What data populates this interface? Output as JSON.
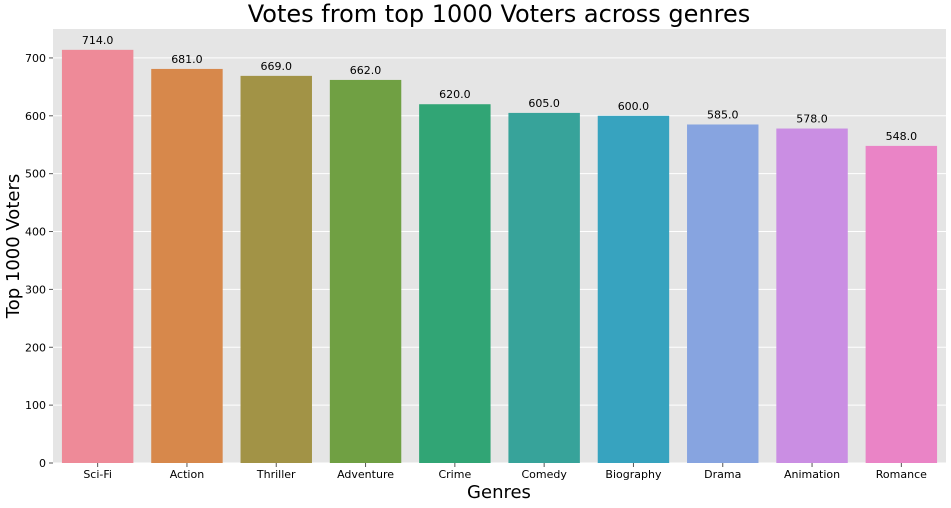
{
  "chart_data": {
    "type": "bar",
    "title": "Votes from top 1000 Voters across genres",
    "xlabel": "Genres",
    "ylabel": "Top 1000 Voters",
    "categories": [
      "Sci-Fi",
      "Action",
      "Thriller",
      "Adventure",
      "Crime",
      "Comedy",
      "Biography",
      "Drama",
      "Animation",
      "Romance"
    ],
    "values": [
      714.0,
      681.0,
      669.0,
      662.0,
      620.0,
      605.0,
      600.0,
      585.0,
      578.0,
      548.0
    ],
    "data_labels": [
      "714.0",
      "681.0",
      "669.0",
      "662.0",
      "620.0",
      "605.0",
      "600.0",
      "585.0",
      "578.0",
      "548.0"
    ],
    "colors": [
      "#ee8a98",
      "#d7884b",
      "#a29346",
      "#70a043",
      "#31a575",
      "#37a39a",
      "#37a3bf",
      "#87a4e0",
      "#ca8ee3",
      "#ea84c6"
    ],
    "ylim": [
      0,
      750
    ],
    "yticks": [
      0,
      100,
      200,
      300,
      400,
      500,
      600,
      700
    ],
    "grid": true,
    "background": "#e5e5e5"
  }
}
